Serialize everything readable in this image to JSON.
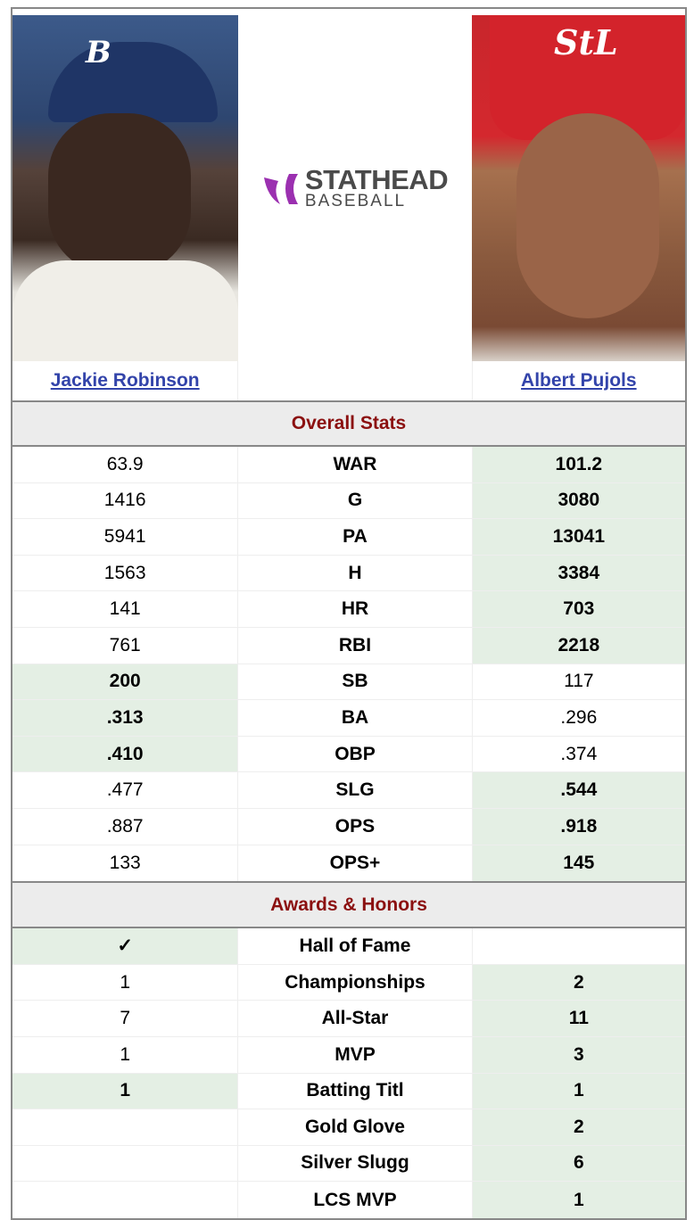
{
  "logo": {
    "line1": "STATHEAD",
    "line2": "BASEBALL",
    "accent": "#9b30b0"
  },
  "players": [
    {
      "name": "Jackie Robinson",
      "cap_letter": "B"
    },
    {
      "name": "Albert Pujols",
      "cap_letter": "StL"
    }
  ],
  "colors": {
    "highlight": "#e4efe4",
    "section_text": "#8b1010",
    "link": "#3344aa"
  },
  "overall": {
    "title": "Overall Stats",
    "rows": [
      {
        "stat": "WAR",
        "left": "63.9",
        "right": "101.2",
        "winner": "right"
      },
      {
        "stat": "G",
        "left": "1416",
        "right": "3080",
        "winner": "right"
      },
      {
        "stat": "PA",
        "left": "5941",
        "right": "13041",
        "winner": "right"
      },
      {
        "stat": "H",
        "left": "1563",
        "right": "3384",
        "winner": "right"
      },
      {
        "stat": "HR",
        "left": "141",
        "right": "703",
        "winner": "right"
      },
      {
        "stat": "RBI",
        "left": "761",
        "right": "2218",
        "winner": "right"
      },
      {
        "stat": "SB",
        "left": "200",
        "right": "117",
        "winner": "left"
      },
      {
        "stat": "BA",
        "left": ".313",
        "right": ".296",
        "winner": "left"
      },
      {
        "stat": "OBP",
        "left": ".410",
        "right": ".374",
        "winner": "left"
      },
      {
        "stat": "SLG",
        "left": ".477",
        "right": ".544",
        "winner": "right"
      },
      {
        "stat": "OPS",
        "left": ".887",
        "right": ".918",
        "winner": "right"
      },
      {
        "stat": "OPS+",
        "left": "133",
        "right": "145",
        "winner": "right"
      }
    ]
  },
  "awards": {
    "title": "Awards & Honors",
    "rows": [
      {
        "stat": "Hall of Fame",
        "left": "✓",
        "right": "",
        "winner": "left"
      },
      {
        "stat": "Championships",
        "left": "1",
        "right": "2",
        "winner": "right"
      },
      {
        "stat": "All-Star",
        "left": "7",
        "right": "11",
        "winner": "right"
      },
      {
        "stat": "MVP",
        "left": "1",
        "right": "3",
        "winner": "right"
      },
      {
        "stat": "Batting Titl",
        "left": "1",
        "right": "1",
        "winner": "both"
      },
      {
        "stat": "Gold Glove",
        "left": "",
        "right": "2",
        "winner": "right"
      },
      {
        "stat": "Silver Slugg",
        "left": "",
        "right": "6",
        "winner": "right"
      },
      {
        "stat": "LCS MVP",
        "left": "",
        "right": "1",
        "winner": "right"
      }
    ]
  }
}
